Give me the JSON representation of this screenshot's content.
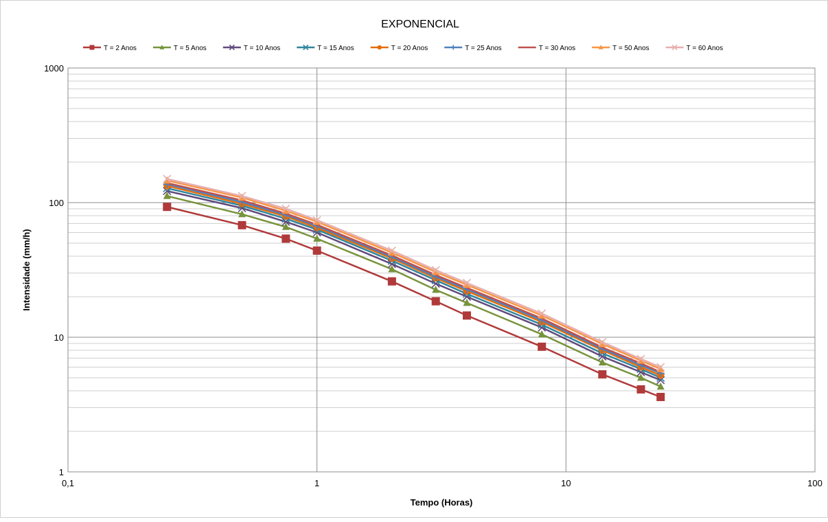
{
  "chart_data": {
    "type": "line",
    "title": "EXPONENCIAL",
    "xlabel": "Tempo (Horas)",
    "ylabel": "Intensidade (mm/h)",
    "xscale": "log",
    "yscale": "log",
    "xlim": [
      0.1,
      100
    ],
    "ylim": [
      1,
      1000
    ],
    "x_ticks": [
      "0,1",
      "1",
      "10",
      "100"
    ],
    "y_ticks": [
      "1",
      "10",
      "100",
      "1000"
    ],
    "grid": true,
    "legend_position": "top",
    "x": [
      0.25,
      0.5,
      0.75,
      1,
      2,
      3,
      4,
      8,
      14,
      20,
      24
    ],
    "series": [
      {
        "name": "T = 2 Anos",
        "color": "#B03A3A",
        "marker": "square",
        "values": [
          93,
          68,
          54,
          44,
          26,
          18.5,
          14.5,
          8.5,
          5.3,
          4.1,
          3.6
        ]
      },
      {
        "name": "T = 5 Anos",
        "color": "#77933C",
        "marker": "triangle",
        "values": [
          112,
          82,
          66,
          54,
          32,
          22.5,
          18,
          10.5,
          6.5,
          5.0,
          4.3
        ]
      },
      {
        "name": "T = 10 Anos",
        "color": "#604A7B",
        "marker": "x",
        "values": [
          122,
          91,
          72,
          60,
          35,
          25,
          20,
          11.8,
          7.2,
          5.5,
          4.8
        ]
      },
      {
        "name": "T = 15 Anos",
        "color": "#31859C",
        "marker": "x",
        "values": [
          128,
          95,
          76,
          63,
          37,
          26.5,
          21,
          12.4,
          7.6,
          5.8,
          5.0
        ]
      },
      {
        "name": "T = 20 Anos",
        "color": "#E46C0A",
        "marker": "circle",
        "values": [
          133,
          98,
          79,
          65,
          38.5,
          27.5,
          22,
          13,
          8.0,
          6.0,
          5.2
        ]
      },
      {
        "name": "T = 25 Anos",
        "color": "#4F81BD",
        "marker": "plus",
        "values": [
          137,
          101,
          81,
          67,
          39.5,
          28.2,
          22.7,
          13.4,
          8.2,
          6.2,
          5.4
        ]
      },
      {
        "name": "T = 30 Anos",
        "color": "#C0504D",
        "marker": "none",
        "values": [
          140,
          104,
          83,
          68.5,
          40.5,
          29,
          23.3,
          13.8,
          8.4,
          6.4,
          5.5
        ]
      },
      {
        "name": "T = 50 Anos",
        "color": "#F79646",
        "marker": "triangle",
        "values": [
          146,
          109,
          87,
          72,
          42.5,
          30.5,
          24.5,
          14.5,
          8.9,
          6.7,
          5.8
        ]
      },
      {
        "name": "T = 60 Anos",
        "color": "#E6B0B0",
        "marker": "x",
        "values": [
          150,
          112,
          90,
          74,
          44,
          31.5,
          25.3,
          15,
          9.2,
          6.9,
          6.0
        ]
      }
    ]
  }
}
